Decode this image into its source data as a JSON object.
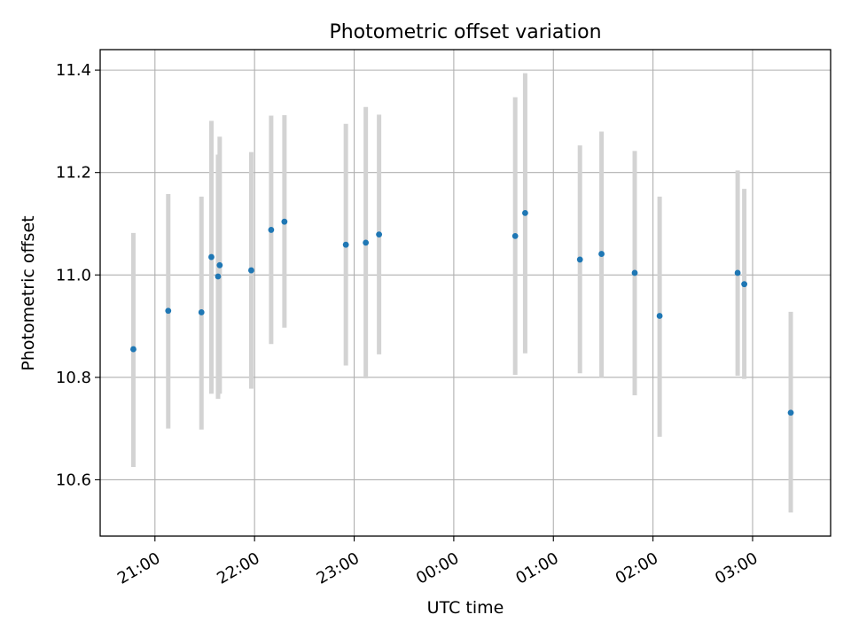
{
  "chart_data": {
    "type": "scatter",
    "title": "Photometric offset variation",
    "xlabel": "UTC time",
    "ylabel": "Photometric offset",
    "x_ticks": [
      "21:00",
      "22:00",
      "23:00",
      "00:00",
      "01:00",
      "02:00",
      "03:00"
    ],
    "y_ticks": [
      "10.6",
      "10.8",
      "11.0",
      "11.2",
      "11.4"
    ],
    "xlim": [
      "20:27",
      "03:47"
    ],
    "ylim": [
      10.49,
      11.44
    ],
    "grid": true,
    "marker_color": "#1f77b4",
    "errorbar_color": "#d3d3d3",
    "points": [
      {
        "x": "20:47",
        "y": 10.855,
        "err_low": 10.625,
        "err_high": 11.082
      },
      {
        "x": "21:08",
        "y": 10.93,
        "err_low": 10.7,
        "err_high": 11.158
      },
      {
        "x": "21:28",
        "y": 10.927,
        "err_low": 10.698,
        "err_high": 11.153
      },
      {
        "x": "21:34",
        "y": 11.035,
        "err_low": 10.768,
        "err_high": 11.301
      },
      {
        "x": "21:38",
        "y": 10.997,
        "err_low": 10.758,
        "err_high": 11.235
      },
      {
        "x": "21:39",
        "y": 11.019,
        "err_low": 10.768,
        "err_high": 11.27
      },
      {
        "x": "21:58",
        "y": 11.009,
        "err_low": 10.778,
        "err_high": 11.24
      },
      {
        "x": "22:10",
        "y": 11.088,
        "err_low": 10.865,
        "err_high": 11.311
      },
      {
        "x": "22:18",
        "y": 11.104,
        "err_low": 10.897,
        "err_high": 11.312
      },
      {
        "x": "22:55",
        "y": 11.059,
        "err_low": 10.823,
        "err_high": 11.295
      },
      {
        "x": "23:07",
        "y": 11.063,
        "err_low": 10.798,
        "err_high": 11.328
      },
      {
        "x": "23:15",
        "y": 11.079,
        "err_low": 10.845,
        "err_high": 11.313
      },
      {
        "x": "00:37",
        "y": 11.076,
        "err_low": 10.805,
        "err_high": 11.347
      },
      {
        "x": "00:43",
        "y": 11.121,
        "err_low": 10.847,
        "err_high": 11.394
      },
      {
        "x": "01:16",
        "y": 11.03,
        "err_low": 10.808,
        "err_high": 11.253
      },
      {
        "x": "01:29",
        "y": 11.041,
        "err_low": 10.8,
        "err_high": 11.28
      },
      {
        "x": "01:49",
        "y": 11.004,
        "err_low": 10.765,
        "err_high": 11.242
      },
      {
        "x": "02:04",
        "y": 10.92,
        "err_low": 10.684,
        "err_high": 11.153
      },
      {
        "x": "02:51",
        "y": 11.004,
        "err_low": 10.803,
        "err_high": 11.204
      },
      {
        "x": "02:55",
        "y": 10.982,
        "err_low": 10.797,
        "err_high": 11.168
      },
      {
        "x": "03:23",
        "y": 10.731,
        "err_low": 10.536,
        "err_high": 10.928
      }
    ]
  }
}
